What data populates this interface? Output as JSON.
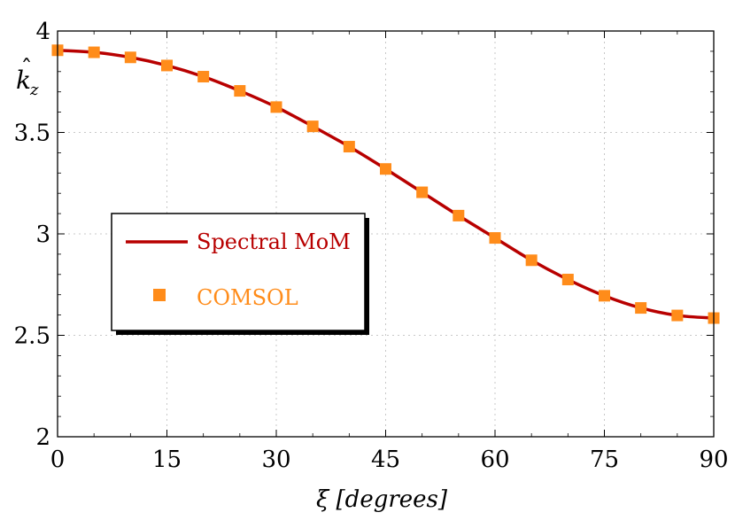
{
  "chart_data": {
    "type": "line",
    "title": "",
    "xlabel": "ξ [degrees]",
    "ylabel": "k̂_z",
    "ylabel_base": "k",
    "ylabel_hat": "ˆ",
    "ylabel_sub": "z",
    "xlim": [
      0,
      90
    ],
    "ylim": [
      2,
      4
    ],
    "xticks": [
      "0",
      "15",
      "30",
      "45",
      "60",
      "75",
      "90"
    ],
    "yticks": [
      "2",
      "2.5",
      "3",
      "3.5",
      "4"
    ],
    "grid": true,
    "legend_position": "center-left",
    "series": [
      {
        "name": "Spectral MoM",
        "kind": "line",
        "color": "#b80000",
        "x": [
          0,
          5,
          10,
          15,
          20,
          25,
          30,
          35,
          40,
          45,
          50,
          55,
          60,
          65,
          70,
          75,
          80,
          85,
          90
        ],
        "values": [
          3.905,
          3.895,
          3.87,
          3.83,
          3.775,
          3.705,
          3.625,
          3.53,
          3.43,
          3.32,
          3.205,
          3.09,
          2.98,
          2.87,
          2.775,
          2.695,
          2.635,
          2.598,
          2.585
        ]
      },
      {
        "name": "COMSOL",
        "kind": "marker",
        "color": "#ff8c1a",
        "x": [
          0,
          5,
          10,
          15,
          20,
          25,
          30,
          35,
          40,
          45,
          50,
          55,
          60,
          65,
          70,
          75,
          80,
          85,
          90
        ],
        "values": [
          3.905,
          3.895,
          3.87,
          3.83,
          3.775,
          3.705,
          3.625,
          3.53,
          3.43,
          3.32,
          3.205,
          3.09,
          2.98,
          2.87,
          2.775,
          2.695,
          2.635,
          2.598,
          2.585
        ]
      }
    ]
  }
}
